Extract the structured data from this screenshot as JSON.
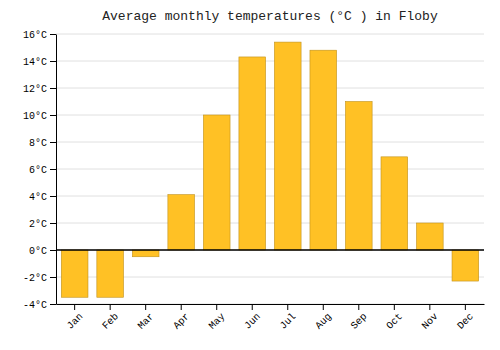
{
  "chart_data": {
    "type": "bar",
    "title": "Average monthly temperatures (°C ) in Floby",
    "categories": [
      "Jan",
      "Feb",
      "Mar",
      "Apr",
      "May",
      "Jun",
      "Jul",
      "Aug",
      "Sep",
      "Oct",
      "Nov",
      "Dec"
    ],
    "values": [
      -3.5,
      -3.5,
      -0.5,
      4.1,
      10.0,
      14.3,
      15.4,
      14.8,
      11.0,
      6.9,
      2.0,
      -2.3
    ],
    "color": "#FFC125",
    "ylim": [
      -4,
      16
    ],
    "yticks": [
      {
        "value": -4,
        "label": "-4°C"
      },
      {
        "value": -2,
        "label": "-2°C"
      },
      {
        "value": 0,
        "label": "0°C"
      },
      {
        "value": 2,
        "label": "2°C"
      },
      {
        "value": 4,
        "label": "4°C"
      },
      {
        "value": 6,
        "label": "6°C"
      },
      {
        "value": 8,
        "label": "8°C"
      },
      {
        "value": 10,
        "label": "10°C"
      },
      {
        "value": 12,
        "label": "12°C"
      },
      {
        "value": 14,
        "label": "14°C"
      },
      {
        "value": 16,
        "label": "16°C"
      }
    ],
    "grid": true
  }
}
